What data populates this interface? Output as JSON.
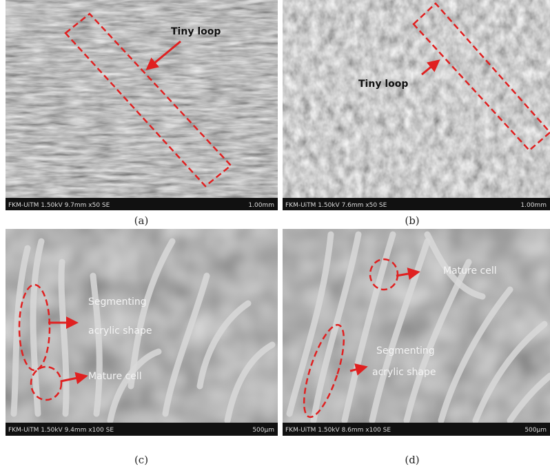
{
  "panels": [
    {
      "caption": "(a)",
      "info_left": "FKM-UiTM 1.50kV 9.7mm x50 SE",
      "info_right": "1.00mm",
      "annotations": [
        "Tiny loop"
      ]
    },
    {
      "caption": "(b)",
      "info_left": "FKM-UiTM 1.50kV 7.6mm x50 SE",
      "info_right": "1.00mm",
      "annotations": [
        "Tiny loop"
      ]
    },
    {
      "caption": "(c)",
      "info_left": "FKM-UiTM 1.50kV 9.4mm x100 SE",
      "info_right": "500µm",
      "annotations": [
        "Segmenting",
        "acrylic shape",
        "Mature cell"
      ]
    },
    {
      "caption": "(d)",
      "info_left": "FKM-UiTM 1.50kV 8.6mm x100 SE",
      "info_right": "500µm",
      "annotations": [
        "Mature cell",
        "Segmenting",
        "acrylic shape"
      ]
    }
  ]
}
